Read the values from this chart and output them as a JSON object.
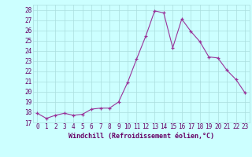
{
  "xlabel": "Windchill (Refroidissement éolien,°C)",
  "x": [
    0,
    1,
    2,
    3,
    4,
    5,
    6,
    7,
    8,
    9,
    10,
    11,
    12,
    13,
    14,
    15,
    16,
    17,
    18,
    19,
    20,
    21,
    22,
    23
  ],
  "y": [
    17.9,
    17.4,
    17.7,
    17.9,
    17.7,
    17.8,
    18.3,
    18.4,
    18.4,
    19.0,
    20.9,
    23.2,
    25.4,
    27.9,
    27.7,
    24.3,
    27.1,
    25.9,
    24.9,
    23.4,
    23.3,
    22.1,
    21.2,
    19.9
  ],
  "line_color": "#993399",
  "marker": "+",
  "bg_color": "#ccffff",
  "grid_color": "#aadddd",
  "axis_label_color": "#660066",
  "tick_color": "#660066",
  "ylim": [
    17,
    28.5
  ],
  "yticks": [
    17,
    18,
    19,
    20,
    21,
    22,
    23,
    24,
    25,
    26,
    27,
    28
  ],
  "xticks": [
    0,
    1,
    2,
    3,
    4,
    5,
    6,
    7,
    8,
    9,
    10,
    11,
    12,
    13,
    14,
    15,
    16,
    17,
    18,
    19,
    20,
    21,
    22,
    23
  ],
  "xtick_labels": [
    "0",
    "1",
    "2",
    "3",
    "4",
    "5",
    "6",
    "7",
    "8",
    "9",
    "10",
    "11",
    "12",
    "13",
    "14",
    "15",
    "16",
    "17",
    "18",
    "19",
    "20",
    "21",
    "22",
    "23"
  ],
  "ytick_labels": [
    "17",
    "18",
    "19",
    "20",
    "21",
    "22",
    "23",
    "24",
    "25",
    "26",
    "27",
    "28"
  ],
  "xlabel_fontsize": 6,
  "tick_fontsize": 5.5,
  "xlabel_bold": true
}
